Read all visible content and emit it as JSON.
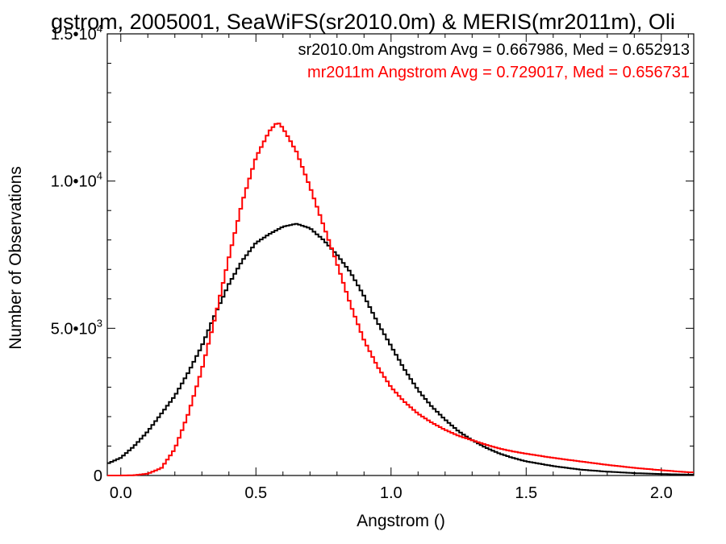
{
  "chart_data": {
    "type": "line",
    "title": "gstrom, 2005001, SeaWiFS(sr2010.0m) & MERIS(mr2011m), Oli",
    "xlabel": "Angstrom ()",
    "ylabel": "Number of Observations",
    "xlim": [
      -0.05,
      2.12
    ],
    "ylim": [
      0,
      15000
    ],
    "grid": false,
    "legend_position": "top-right",
    "x_ticks": [
      {
        "value": 0.0,
        "label": "0.0"
      },
      {
        "value": 0.5,
        "label": "0.5"
      },
      {
        "value": 1.0,
        "label": "1.0"
      },
      {
        "value": 1.5,
        "label": "1.5"
      },
      {
        "value": 2.0,
        "label": "2.0"
      }
    ],
    "y_ticks": [
      {
        "value": 0,
        "mantissa": "0",
        "exponent": ""
      },
      {
        "value": 5000,
        "mantissa": "5.0•10",
        "exponent": "3"
      },
      {
        "value": 10000,
        "mantissa": "1.0•10",
        "exponent": "4"
      },
      {
        "value": 15000,
        "mantissa": "1.5•10",
        "exponent": "4"
      }
    ],
    "series": [
      {
        "name": "sr2010.0m Angstrom Avg = 0.667986, Med = 0.652913",
        "color": "#000000",
        "x": [
          -0.05,
          0.0,
          0.05,
          0.1,
          0.15,
          0.2,
          0.25,
          0.3,
          0.35,
          0.4,
          0.45,
          0.5,
          0.55,
          0.6,
          0.65,
          0.7,
          0.75,
          0.8,
          0.85,
          0.9,
          0.95,
          1.0,
          1.05,
          1.1,
          1.15,
          1.2,
          1.25,
          1.3,
          1.35,
          1.4,
          1.45,
          1.5,
          1.6,
          1.7,
          1.8,
          1.9,
          2.0,
          2.1
        ],
        "y": [
          400,
          600,
          1000,
          1500,
          2100,
          2700,
          3500,
          4400,
          5500,
          6500,
          7300,
          7900,
          8200,
          8450,
          8550,
          8400,
          8000,
          7500,
          6900,
          6100,
          5200,
          4400,
          3600,
          2900,
          2350,
          1900,
          1500,
          1200,
          950,
          750,
          600,
          480,
          320,
          200,
          130,
          80,
          50,
          30
        ]
      },
      {
        "name": "mr2011m Angstrom Avg = 0.729017, Med = 0.656731",
        "color": "#ff0000",
        "x": [
          -0.05,
          0.0,
          0.05,
          0.1,
          0.15,
          0.2,
          0.25,
          0.3,
          0.35,
          0.4,
          0.45,
          0.5,
          0.55,
          0.58,
          0.6,
          0.65,
          0.7,
          0.75,
          0.8,
          0.85,
          0.9,
          0.95,
          1.0,
          1.05,
          1.1,
          1.15,
          1.2,
          1.25,
          1.3,
          1.35,
          1.4,
          1.45,
          1.5,
          1.6,
          1.7,
          1.8,
          1.9,
          2.0,
          2.1
        ],
        "y": [
          0,
          0,
          10,
          60,
          250,
          900,
          2100,
          3600,
          5400,
          7400,
          9300,
          10800,
          11700,
          12000,
          11800,
          11000,
          9800,
          8500,
          7200,
          5800,
          4600,
          3700,
          3000,
          2500,
          2100,
          1800,
          1550,
          1350,
          1200,
          1050,
          920,
          820,
          740,
          600,
          480,
          360,
          260,
          180,
          110
        ]
      }
    ]
  }
}
